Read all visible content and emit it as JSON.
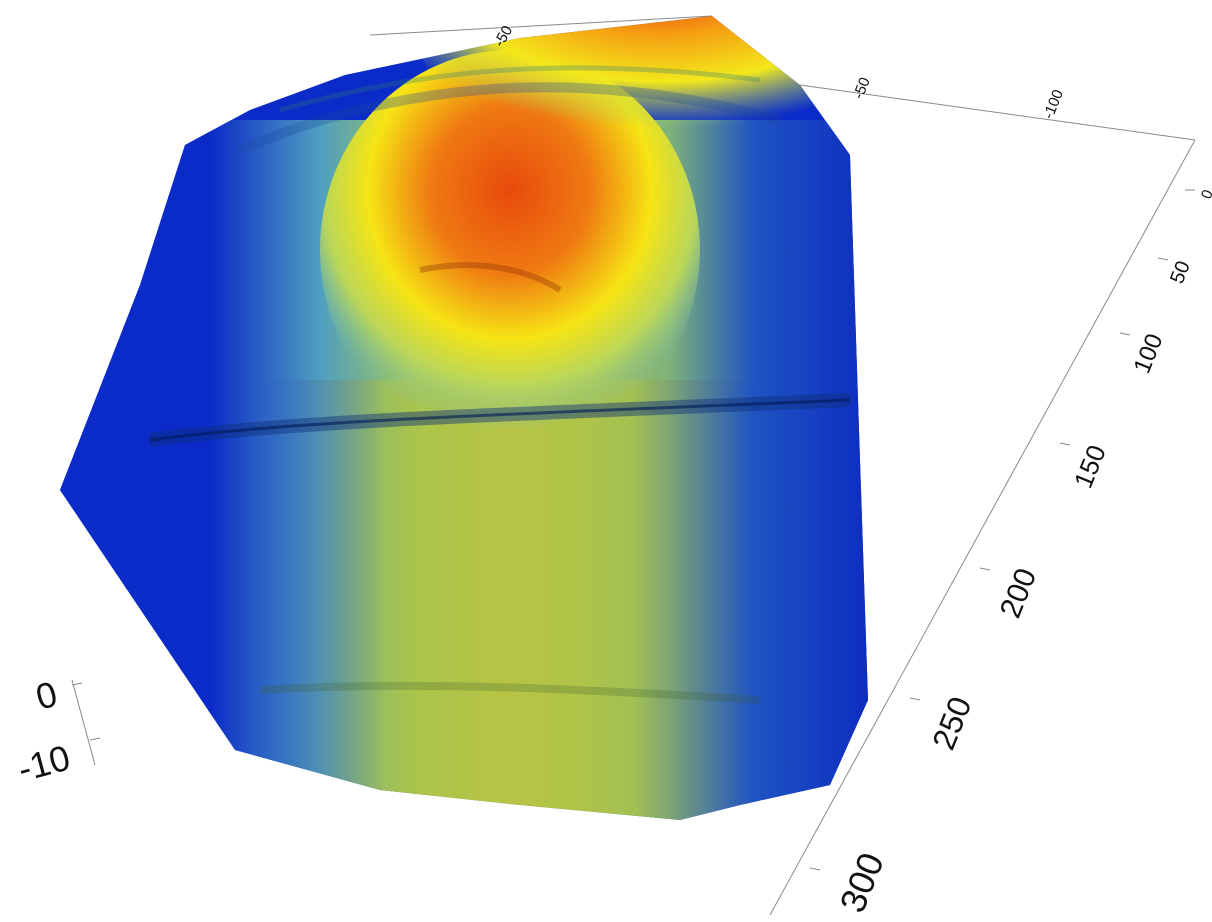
{
  "figure": {
    "colors": {
      "low": "#0b2bc8",
      "mid_low": "#55b0c0",
      "mid": "#a9c64a",
      "high": "#f7ea10",
      "peak": "#e0420c",
      "top": "#ee1c0a"
    }
  },
  "axes": {
    "top_ticks": [
      "-50",
      "-50",
      "-100"
    ],
    "right_ticks": [
      "0",
      "50",
      "100",
      "150",
      "200",
      "250",
      "300"
    ],
    "z_ticks": [
      "0",
      "-10"
    ]
  }
}
